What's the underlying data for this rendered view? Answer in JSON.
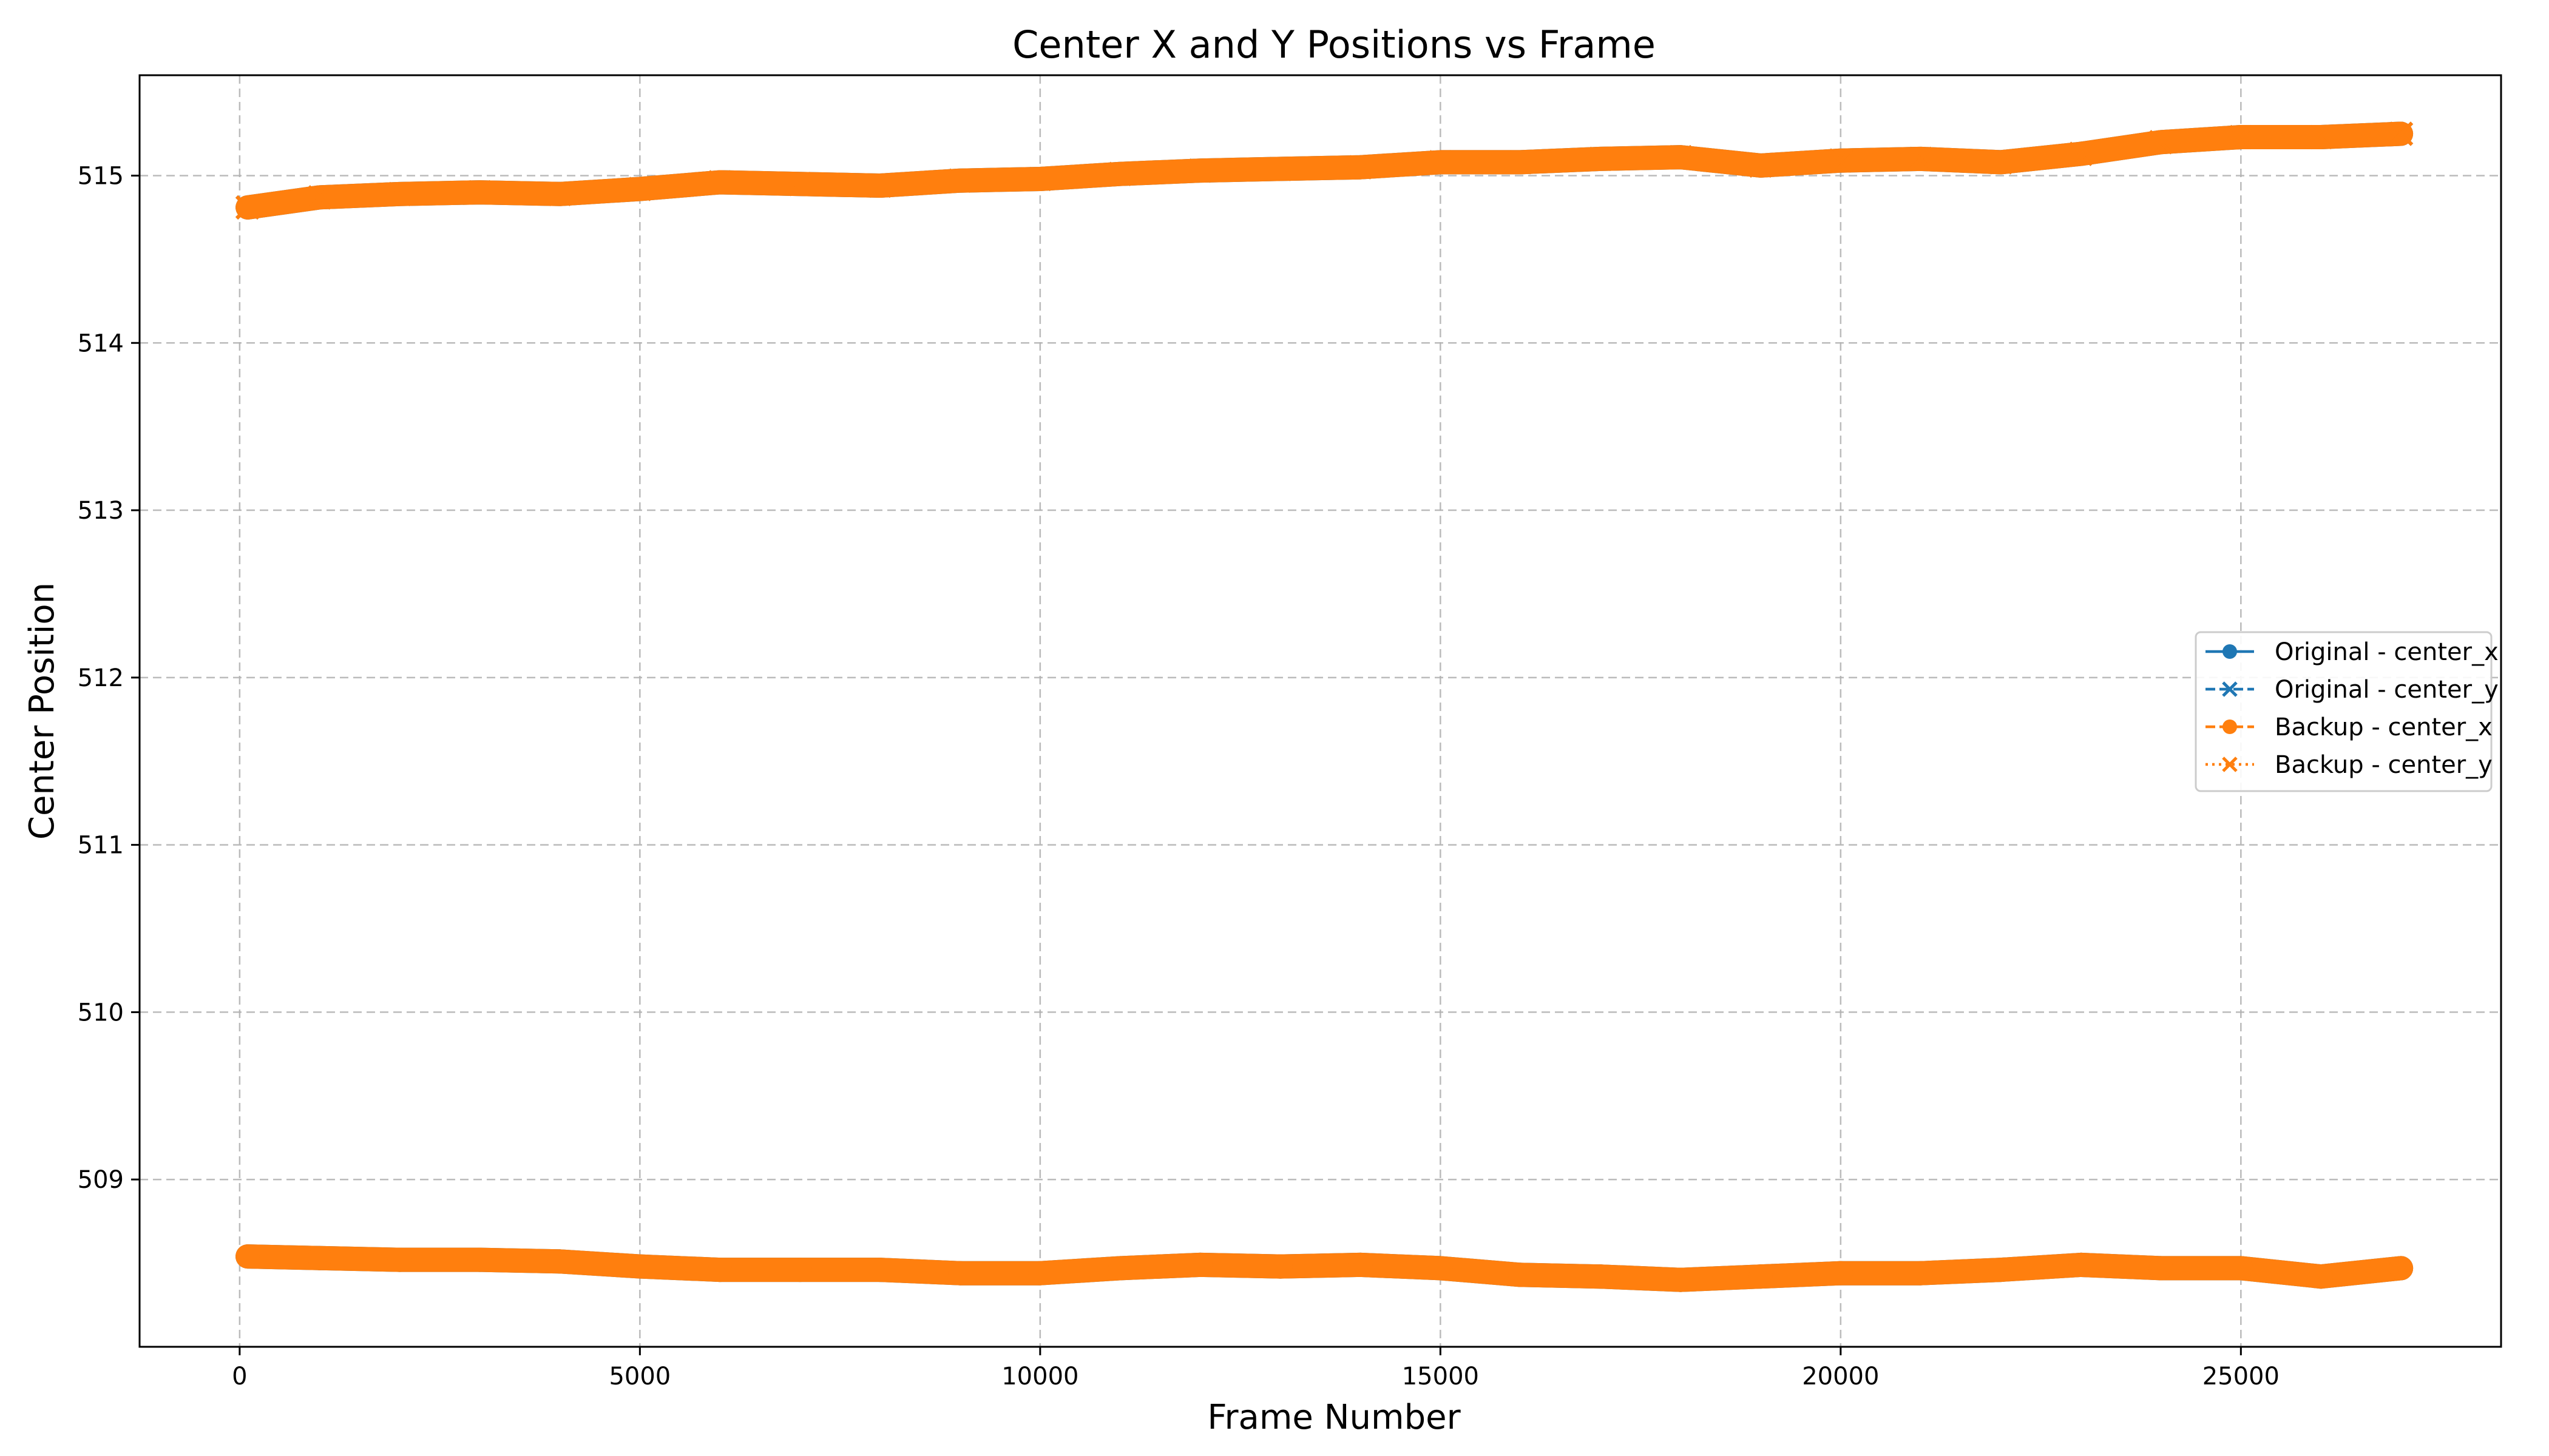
{
  "chart_data": {
    "type": "line",
    "title": "Center X and Y Positions vs Frame",
    "xlabel": "Frame Number",
    "ylabel": "Center Position",
    "xlim": [
      -1250,
      28250
    ],
    "ylim": [
      508.0,
      515.6
    ],
    "xticks": [
      0,
      5000,
      10000,
      15000,
      20000,
      25000
    ],
    "yticks": [
      509,
      510,
      511,
      512,
      513,
      514,
      515
    ],
    "grid": true,
    "legend_position": "center-right",
    "series": [
      {
        "name": "Original - center_x",
        "color": "#1f77b4",
        "line_style": "solid",
        "marker": "circle",
        "x": [
          100,
          1000,
          2000,
          3000,
          4000,
          5000,
          6000,
          7000,
          8000,
          9000,
          10000,
          11000,
          12000,
          13000,
          14000,
          15000,
          16000,
          17000,
          18000,
          19000,
          20000,
          21000,
          22000,
          23000,
          24000,
          25000,
          26000,
          27000
        ],
        "y": [
          508.54,
          508.53,
          508.52,
          508.52,
          508.51,
          508.48,
          508.46,
          508.46,
          508.46,
          508.44,
          508.44,
          508.47,
          508.49,
          508.48,
          508.49,
          508.47,
          508.43,
          508.42,
          508.4,
          508.42,
          508.44,
          508.44,
          508.46,
          508.49,
          508.47,
          508.47,
          508.42,
          508.47
        ]
      },
      {
        "name": "Original - center_y",
        "color": "#1f77b4",
        "line_style": "dashed",
        "marker": "x",
        "x": [
          100,
          1000,
          2000,
          3000,
          4000,
          5000,
          6000,
          7000,
          8000,
          9000,
          10000,
          11000,
          12000,
          13000,
          14000,
          15000,
          16000,
          17000,
          18000,
          19000,
          20000,
          21000,
          22000,
          23000,
          24000,
          25000,
          26000,
          27000
        ],
        "y": [
          514.81,
          514.87,
          514.89,
          514.9,
          514.89,
          514.92,
          514.96,
          514.95,
          514.94,
          514.97,
          514.98,
          515.01,
          515.03,
          515.04,
          515.05,
          515.08,
          515.08,
          515.1,
          515.11,
          515.06,
          515.09,
          515.1,
          515.08,
          515.13,
          515.2,
          515.23,
          515.23,
          515.25
        ]
      },
      {
        "name": "Backup - center_x",
        "color": "#ff7f0e",
        "line_style": "dashed",
        "marker": "circle",
        "x": [
          100,
          1000,
          2000,
          3000,
          4000,
          5000,
          6000,
          7000,
          8000,
          9000,
          10000,
          11000,
          12000,
          13000,
          14000,
          15000,
          16000,
          17000,
          18000,
          19000,
          20000,
          21000,
          22000,
          23000,
          24000,
          25000,
          26000,
          27000
        ],
        "y": [
          508.54,
          508.53,
          508.52,
          508.52,
          508.51,
          508.48,
          508.46,
          508.46,
          508.46,
          508.44,
          508.44,
          508.47,
          508.49,
          508.48,
          508.49,
          508.47,
          508.43,
          508.42,
          508.4,
          508.42,
          508.44,
          508.44,
          508.46,
          508.49,
          508.47,
          508.47,
          508.42,
          508.47
        ]
      },
      {
        "name": "Backup - center_y",
        "color": "#ff7f0e",
        "line_style": "dotted",
        "marker": "x",
        "x": [
          100,
          1000,
          2000,
          3000,
          4000,
          5000,
          6000,
          7000,
          8000,
          9000,
          10000,
          11000,
          12000,
          13000,
          14000,
          15000,
          16000,
          17000,
          18000,
          19000,
          20000,
          21000,
          22000,
          23000,
          24000,
          25000,
          26000,
          27000
        ],
        "y": [
          514.81,
          514.87,
          514.89,
          514.9,
          514.89,
          514.92,
          514.96,
          514.95,
          514.94,
          514.97,
          514.98,
          515.01,
          515.03,
          515.04,
          515.05,
          515.08,
          515.08,
          515.1,
          515.11,
          515.06,
          515.09,
          515.1,
          515.08,
          515.13,
          515.2,
          515.23,
          515.23,
          515.25
        ]
      }
    ]
  }
}
